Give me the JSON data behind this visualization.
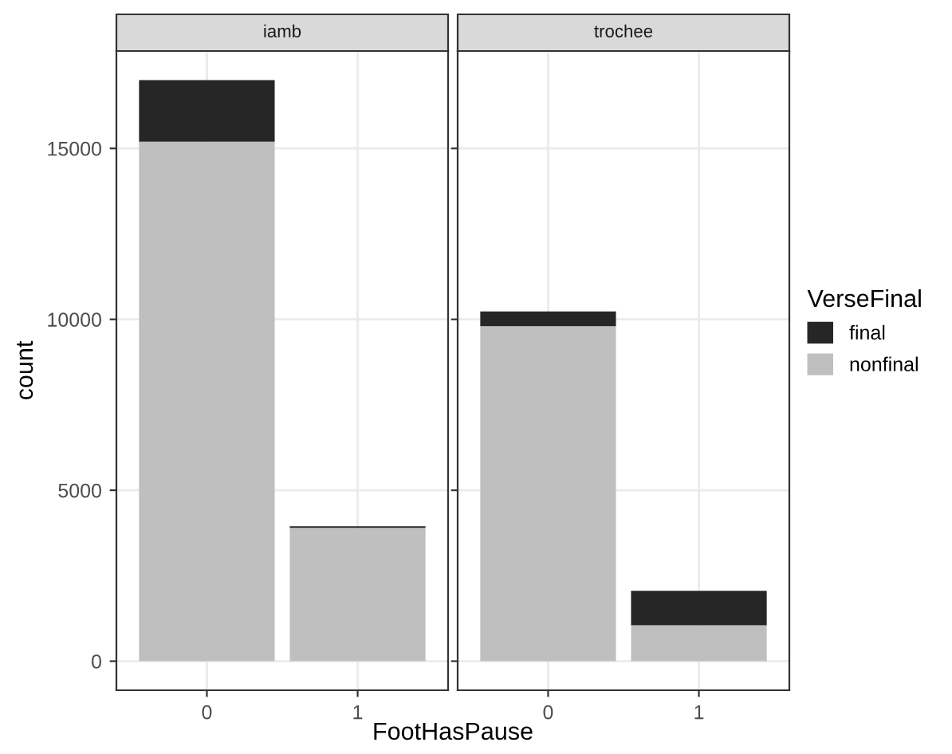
{
  "chart_data": [
    {
      "type": "bar",
      "title": "iamb",
      "xlabel": "FootHasPause",
      "ylabel": "count",
      "categories": [
        "0",
        "1"
      ],
      "stacked": true,
      "grid": true,
      "ylim": [
        -850,
        17850
      ],
      "yticks": [
        0,
        5000,
        10000,
        15000
      ],
      "series": [
        {
          "color": "#bfbfbf",
          "values": [
            15200,
            3900
          ]
        },
        {
          "color": "#262626",
          "values": [
            1800,
            50
          ]
        }
      ]
    },
    {
      "type": "bar",
      "title": "trochee",
      "categories": [
        "0",
        "1"
      ],
      "stacked": true,
      "grid": true,
      "ylim": [
        -850,
        17850
      ],
      "yticks": [
        0,
        5000,
        10000,
        15000
      ],
      "tick_labels": "x",
      "legend": "right",
      "legend_title": "VerseFinal",
      "series": [
        {
          "name": "nonfinal",
          "color": "#bfbfbf",
          "values": [
            9800,
            1050
          ]
        },
        {
          "name": "final",
          "color": "#262626",
          "values": [
            430,
            1010
          ]
        }
      ]
    }
  ]
}
